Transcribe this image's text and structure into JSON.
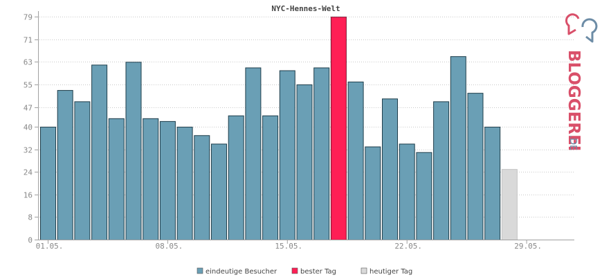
{
  "chart_data": {
    "type": "bar",
    "title": "NYC-Hennes-Welt",
    "xlabel": "",
    "ylabel": "",
    "ylim": [
      0,
      81
    ],
    "yticks": [
      0,
      8,
      16,
      24,
      32,
      40,
      47,
      55,
      63,
      71,
      79
    ],
    "grid": true,
    "x_tick_labels": [
      "01.05.",
      "08.05.",
      "15.05.",
      "22.05.",
      "29.05."
    ],
    "days": 31,
    "values": [
      40,
      53,
      49,
      62,
      43,
      63,
      43,
      42,
      40,
      37,
      34,
      44,
      61,
      44,
      60,
      55,
      61,
      79,
      56,
      33,
      50,
      34,
      31,
      49,
      65,
      52,
      40,
      25,
      0,
      0,
      0
    ],
    "best_day_index": 17,
    "today_index": 27,
    "colors": {
      "visitors": "#6a9fb5",
      "best": "#ff1f55",
      "today": "#d9d9d9",
      "bar_border": "#1e3d4a"
    },
    "legend": [
      {
        "label": "eindeutige Besucher",
        "color": "#6a9fb5"
      },
      {
        "label": "bester Tag",
        "color": "#ff1f55"
      },
      {
        "label": "heutiger Tag",
        "color": "#d9d9d9"
      }
    ],
    "legend_position": "bottom"
  },
  "logo": {
    "text": "BLOGGEREI",
    "suffix": ".DE",
    "color_main": "#d9506a",
    "color_accent": "#6d8ca6"
  }
}
